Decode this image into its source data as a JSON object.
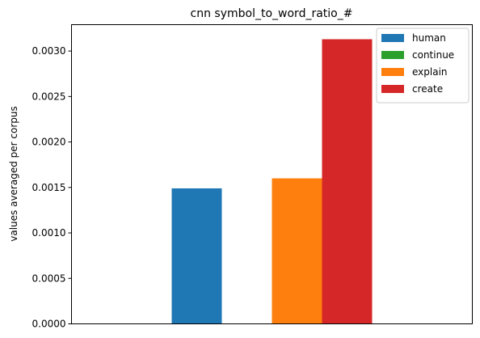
{
  "chart_data": {
    "type": "bar",
    "title": "cnn symbol_to_word_ratio_#",
    "xlabel": "",
    "ylabel": "values averaged per corpus",
    "ylim": [
      0,
      0.00329
    ],
    "yticks": [
      0,
      0.0005,
      0.001,
      0.0015,
      0.002,
      0.0025,
      0.003
    ],
    "ytick_labels": [
      "0.0000",
      "0.0005",
      "0.0010",
      "0.0015",
      "0.0020",
      "0.0025",
      "0.0030"
    ],
    "grid": false,
    "legend_position": "top-right",
    "series": [
      {
        "name": "human",
        "value": 0.00149,
        "color": "#1f77b4"
      },
      {
        "name": "continue",
        "value": 0.0,
        "color": "#2ca02c"
      },
      {
        "name": "explain",
        "value": 0.0016,
        "color": "#ff7f0e"
      },
      {
        "name": "create",
        "value": 0.00313,
        "color": "#d62728"
      }
    ]
  }
}
